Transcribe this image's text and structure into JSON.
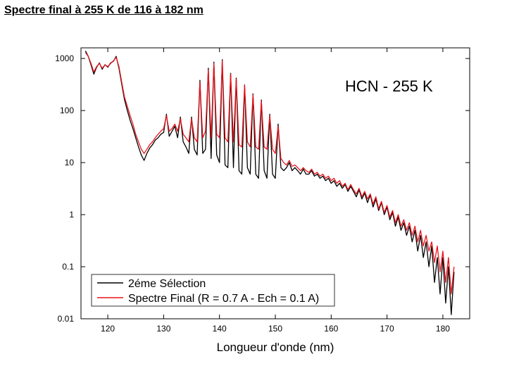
{
  "chart_data": {
    "type": "line",
    "title": "Spectre final à 255 K de 116 à 182 nm",
    "annotation": "HCN - 255 K",
    "xlabel": "Longueur d'onde (nm)",
    "log_y": true,
    "legend": "lower left",
    "xlim": [
      115.2,
      184.8
    ],
    "xticks": [
      120,
      130,
      140,
      150,
      160,
      170,
      180
    ],
    "ylim": [
      0.01,
      1600
    ],
    "yticks": [
      1000,
      100,
      10,
      1,
      0.1,
      0.01
    ],
    "x": [
      116,
      116.5,
      117,
      117.5,
      118,
      118.5,
      119,
      119.5,
      120,
      120.5,
      121,
      121.5,
      122,
      122.5,
      123,
      123.5,
      124,
      124.5,
      125,
      125.5,
      126,
      126.5,
      127,
      127.5,
      128,
      128.5,
      129,
      129.5,
      130,
      130.5,
      131,
      131.5,
      132,
      132.5,
      133,
      133.5,
      134,
      134.5,
      135,
      135.5,
      136,
      136.5,
      137,
      137.5,
      138,
      138.5,
      139,
      139.5,
      140,
      140.5,
      141,
      141.5,
      142,
      142.5,
      143,
      143.5,
      144,
      144.5,
      145,
      145.5,
      146,
      146.5,
      147,
      147.5,
      148,
      148.5,
      149,
      149.5,
      150,
      150.5,
      151,
      151.5,
      152,
      152.5,
      153,
      153.5,
      154,
      154.5,
      155,
      155.5,
      156,
      156.5,
      157,
      157.5,
      158,
      158.5,
      159,
      159.5,
      160,
      160.5,
      161,
      161.5,
      162,
      162.5,
      163,
      163.5,
      164,
      164.5,
      165,
      165.5,
      166,
      166.5,
      167,
      167.5,
      168,
      168.5,
      169,
      169.5,
      170,
      170.5,
      171,
      171.5,
      172,
      172.5,
      173,
      173.5,
      174,
      174.5,
      175,
      175.5,
      176,
      176.5,
      177,
      177.5,
      178,
      178.5,
      179,
      179.5,
      180,
      180.5,
      181,
      181.5,
      182
    ],
    "series": [
      {
        "name": "2éme Sélection",
        "color": "#000000",
        "values": [
          1400,
          1100,
          750,
          500,
          680,
          820,
          620,
          760,
          680,
          820,
          880,
          1100,
          650,
          320,
          160,
          100,
          65,
          45,
          30,
          20,
          14,
          11,
          15,
          19,
          22,
          27,
          30,
          35,
          38,
          85,
          32,
          40,
          50,
          30,
          75,
          25,
          20,
          15,
          75,
          18,
          14,
          380,
          15,
          18,
          650,
          12,
          850,
          14,
          10,
          950,
          9,
          8,
          520,
          8,
          420,
          7,
          6,
          310,
          8,
          6,
          210,
          6,
          5,
          160,
          7,
          5,
          85,
          6,
          5,
          55,
          8,
          7,
          8,
          10,
          7,
          8,
          7,
          6,
          7.5,
          6,
          6,
          7,
          5.5,
          6,
          5,
          5.5,
          4.5,
          5,
          4,
          4.5,
          3.5,
          4,
          3.2,
          3.8,
          2.8,
          3.5,
          2.8,
          2.2,
          3,
          2,
          2.6,
          1.7,
          2.4,
          1.4,
          2,
          1.2,
          1.7,
          1,
          1.4,
          0.8,
          1.1,
          0.6,
          0.9,
          0.5,
          0.7,
          0.4,
          0.6,
          0.3,
          0.5,
          0.2,
          0.4,
          0.15,
          0.3,
          0.1,
          0.25,
          0.05,
          0.15,
          0.03,
          0.15,
          0.02,
          0.1,
          0.012,
          0.08
        ]
      },
      {
        "name": "Spectre Final (R = 0.7 A - Ech = 0.1 A)",
        "color": "#e8141c",
        "values": [
          1300,
          1100,
          800,
          550,
          700,
          800,
          650,
          750,
          700,
          800,
          900,
          1050,
          700,
          350,
          180,
          120,
          80,
          55,
          35,
          25,
          18,
          15,
          18,
          22,
          25,
          30,
          35,
          40,
          45,
          80,
          40,
          45,
          55,
          40,
          70,
          35,
          30,
          25,
          70,
          30,
          25,
          350,
          30,
          40,
          600,
          30,
          800,
          35,
          30,
          900,
          30,
          25,
          500,
          25,
          400,
          22,
          20,
          300,
          25,
          20,
          200,
          20,
          18,
          150,
          20,
          18,
          80,
          18,
          15,
          50,
          12,
          10,
          9,
          11,
          8.5,
          9,
          8,
          7,
          8,
          7,
          6.5,
          7.5,
          6,
          6.5,
          5.5,
          6,
          5,
          5.5,
          4.5,
          5,
          4,
          4.5,
          3.5,
          4,
          3,
          3.8,
          3,
          2.5,
          3.2,
          2.2,
          2.8,
          2,
          2.5,
          1.6,
          2.2,
          1.3,
          1.8,
          1.1,
          1.5,
          0.9,
          1.2,
          0.7,
          1,
          0.6,
          0.8,
          0.5,
          0.7,
          0.4,
          0.6,
          0.3,
          0.5,
          0.25,
          0.4,
          0.2,
          0.3,
          0.12,
          0.25,
          0.08,
          0.2,
          0.05,
          0.15,
          0.03,
          0.1
        ]
      }
    ]
  }
}
